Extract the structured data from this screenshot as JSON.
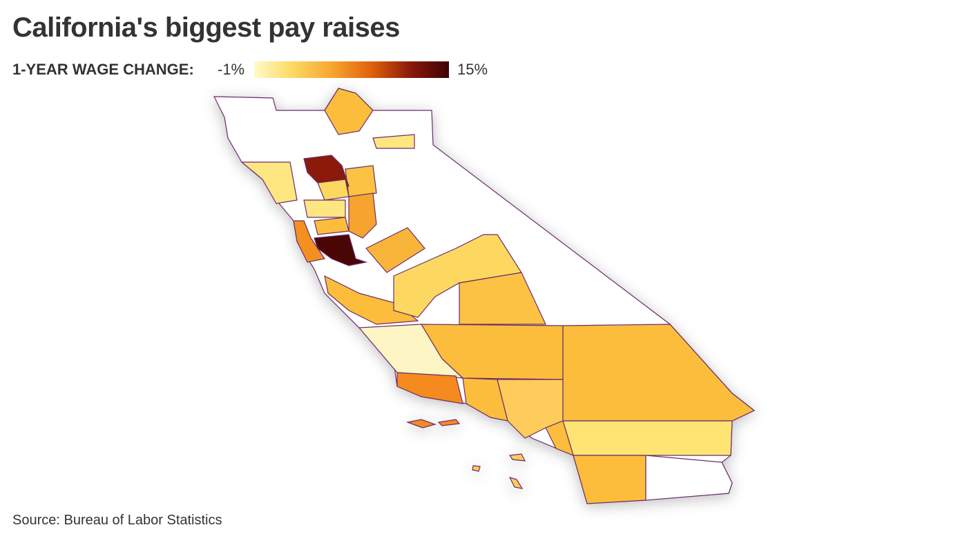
{
  "title": "California's biggest pay raises",
  "legend": {
    "label": "1-YEAR WAGE CHANGE:",
    "min_label": "-1%",
    "max_label": "15%"
  },
  "source": "Source: Bureau of Labor Statistics"
}
